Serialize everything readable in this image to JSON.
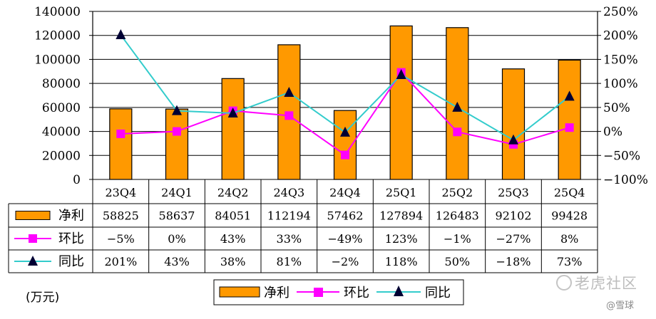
{
  "chart_data": {
    "type": "bar+line",
    "categories": [
      "23Q4",
      "24Q1",
      "24Q2",
      "24Q3",
      "24Q4",
      "25Q1",
      "25Q2",
      "25Q3",
      "25Q4"
    ],
    "series": [
      {
        "name": "净利",
        "type": "bar",
        "axis": "left",
        "values": [
          58825,
          58637,
          84051,
          112194,
          57462,
          127894,
          126483,
          92102,
          99428
        ],
        "labels": [
          "58825",
          "58637",
          "84051",
          "112194",
          "57462",
          "127894",
          "126483",
          "92102",
          "99428"
        ],
        "color": "#FF9900"
      },
      {
        "name": "环比",
        "type": "line",
        "axis": "right",
        "values": [
          -5,
          0,
          43,
          33,
          -49,
          123,
          -1,
          -27,
          8
        ],
        "labels": [
          "−5%",
          "0%",
          "43%",
          "33%",
          "−49%",
          "123%",
          "−1%",
          "−27%",
          "8%"
        ],
        "color": "#FF00FF",
        "marker": "square"
      },
      {
        "name": "同比",
        "type": "line",
        "axis": "right",
        "values": [
          201,
          43,
          38,
          81,
          -2,
          118,
          50,
          -18,
          73
        ],
        "labels": [
          "201%",
          "43%",
          "38%",
          "81%",
          "−2%",
          "118%",
          "50%",
          "−18%",
          "73%"
        ],
        "color": "#33CCCC",
        "marker": "triangle"
      }
    ],
    "y_left": {
      "min": 0,
      "max": 140000,
      "ticks": [
        "0",
        "20000",
        "40000",
        "60000",
        "80000",
        "100000",
        "120000",
        "140000"
      ]
    },
    "y_right": {
      "min": -100,
      "max": 250,
      "ticks": [
        "−100%",
        "−50%",
        "0%",
        "50%",
        "100%",
        "150%",
        "200%",
        "250%"
      ]
    },
    "unit_label": "(万元)",
    "legend_position": "bottom",
    "grid": true,
    "data_table": true
  },
  "watermark": {
    "text": "老虎社区",
    "credit": "@雪球"
  }
}
